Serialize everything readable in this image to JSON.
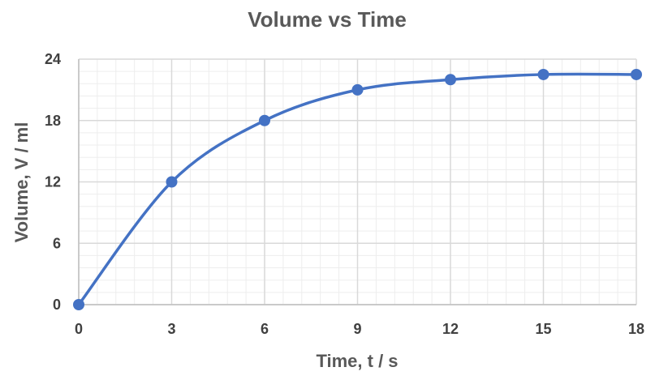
{
  "chart_data": {
    "type": "scatter",
    "title": "Volume vs Time",
    "xlabel": "Time, t / s",
    "ylabel": "Volume, V / ml",
    "xlim": [
      0,
      18
    ],
    "ylim": [
      0,
      24
    ],
    "x_ticks": [
      0,
      3,
      6,
      9,
      12,
      15,
      18
    ],
    "y_ticks": [
      0,
      6,
      12,
      18,
      24
    ],
    "grid": true,
    "minor_grid": true,
    "legend": "none",
    "smooth_line": true,
    "series": [
      {
        "x": [
          0,
          3,
          6,
          9,
          12,
          15,
          18
        ],
        "y": [
          0,
          12,
          18,
          21,
          22,
          22.5,
          22.5
        ],
        "color": "#4472C4"
      }
    ],
    "colors": {
      "series": "#4472C4",
      "major_grid": "#D9D9D9",
      "minor_grid": "#EDEDED",
      "axis": "#BFBFBF",
      "text": "#595959"
    }
  }
}
